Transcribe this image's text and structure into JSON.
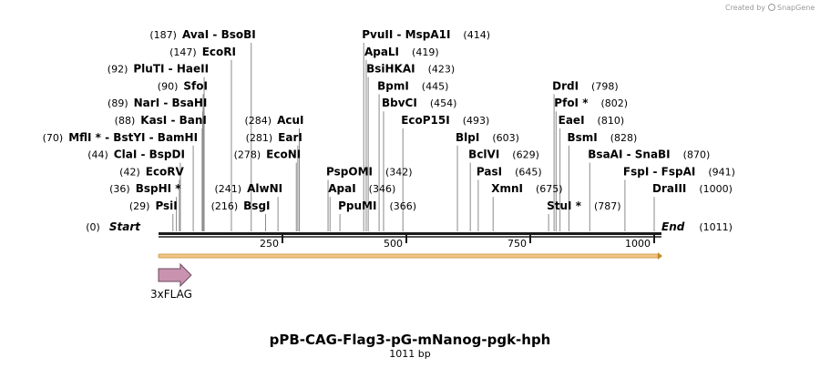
{
  "chart_data": {
    "type": "linear-map",
    "title": "pPB-CAG-Flag3-pG-mNanog-pgk-hph",
    "length_label": "1011 bp",
    "length": 1011,
    "ticks": [
      {
        "value": 250,
        "label": "250"
      },
      {
        "value": 500,
        "label": "500"
      },
      {
        "value": 750,
        "label": "750"
      },
      {
        "value": 1000,
        "label": "1000"
      }
    ],
    "features": [
      {
        "name": "3xFLAG",
        "start": 0,
        "end": 66,
        "color": "#c993b0",
        "direction": "forward"
      }
    ],
    "sites": [
      {
        "text": "AvaI  - BsoBI",
        "pos": "(187)",
        "x": 187,
        "side": "left",
        "row": 0
      },
      {
        "text": "EcoRI",
        "pos": "(147)",
        "x": 147,
        "side": "left",
        "row": 1
      },
      {
        "text": "PluTI  - HaeII",
        "pos": "(92)",
        "x": 92,
        "side": "left",
        "row": 2
      },
      {
        "text": "SfoI",
        "pos": "(90)",
        "x": 90,
        "side": "left",
        "row": 3
      },
      {
        "text": "NarI  - BsaHI",
        "pos": "(89)",
        "x": 89,
        "side": "left",
        "row": 4
      },
      {
        "text": "KasI  - BanI",
        "pos": "(88)",
        "x": 88,
        "side": "left",
        "row": 5
      },
      {
        "text": "MflI * - BstYI  - BamHI",
        "pos": "(70)",
        "x": 70,
        "side": "left",
        "row": 6
      },
      {
        "text": "ClaI  - BspDI",
        "pos": "(44)",
        "x": 44,
        "side": "left",
        "row": 7
      },
      {
        "text": "EcoRV",
        "pos": "(42)",
        "x": 42,
        "side": "left",
        "row": 8
      },
      {
        "text": "BspHI *",
        "pos": "(36)",
        "x": 36,
        "side": "left",
        "row": 9
      },
      {
        "text": "PsiI",
        "pos": "(29)",
        "x": 29,
        "side": "left",
        "row": 10
      },
      {
        "text": "AcuI",
        "pos": "(284)",
        "x": 284,
        "side": "left",
        "row": 5
      },
      {
        "text": "EarI",
        "pos": "(281)",
        "x": 281,
        "side": "left",
        "row": 6
      },
      {
        "text": "EcoNI",
        "pos": "(278)",
        "x": 278,
        "side": "left",
        "row": 7
      },
      {
        "text": "AlwNI",
        "pos": "(241)",
        "x": 241,
        "side": "left",
        "row": 9
      },
      {
        "text": "BsgI",
        "pos": "(216)",
        "x": 216,
        "side": "left",
        "row": 10
      },
      {
        "text": "PvuII  - MspA1I",
        "pos": "(414)",
        "x": 414,
        "side": "right",
        "row": 0
      },
      {
        "text": "ApaLI",
        "pos": "(419)",
        "x": 419,
        "side": "right",
        "row": 1
      },
      {
        "text": "BsiHKAI",
        "pos": "(423)",
        "x": 423,
        "side": "right",
        "row": 2
      },
      {
        "text": "BpmI",
        "pos": "(445)",
        "x": 445,
        "side": "right",
        "row": 3
      },
      {
        "text": "BbvCI",
        "pos": "(454)",
        "x": 454,
        "side": "right",
        "row": 4
      },
      {
        "text": "EcoP15I",
        "pos": "(493)",
        "x": 493,
        "side": "right",
        "row": 5
      },
      {
        "text": "PspOMI",
        "pos": "(342)",
        "x": 342,
        "side": "right",
        "row": 8
      },
      {
        "text": "ApaI",
        "pos": "(346)",
        "x": 346,
        "side": "right",
        "row": 9
      },
      {
        "text": "PpuMI",
        "pos": "(366)",
        "x": 366,
        "side": "right",
        "row": 10
      },
      {
        "text": "BlpI",
        "pos": "(603)",
        "x": 603,
        "side": "right",
        "row": 6
      },
      {
        "text": "BclVI",
        "pos": "(629)",
        "x": 629,
        "side": "right",
        "row": 7
      },
      {
        "text": "PasI",
        "pos": "(645)",
        "x": 645,
        "side": "right",
        "row": 8
      },
      {
        "text": "XmnI",
        "pos": "(675)",
        "x": 675,
        "side": "right",
        "row": 9
      },
      {
        "text": "DrdI",
        "pos": "(798)",
        "x": 798,
        "side": "right",
        "row": 3
      },
      {
        "text": "PfoI *",
        "pos": "(802)",
        "x": 802,
        "side": "right",
        "row": 4
      },
      {
        "text": "EaeI",
        "pos": "(810)",
        "x": 810,
        "side": "right",
        "row": 5
      },
      {
        "text": "BsmI",
        "pos": "(828)",
        "x": 828,
        "side": "right",
        "row": 6
      },
      {
        "text": "BsaAI  - SnaBI",
        "pos": "(870)",
        "x": 870,
        "side": "right",
        "row": 7
      },
      {
        "text": "FspI  - FspAI",
        "pos": "(941)",
        "x": 941,
        "side": "right",
        "row": 8
      },
      {
        "text": "DraIII",
        "pos": "(1000)",
        "x": 1000,
        "side": "right",
        "row": 9
      },
      {
        "text": "StuI *",
        "pos": "(787)",
        "x": 787,
        "side": "right",
        "row": 10
      }
    ],
    "ends": [
      {
        "text": "Start",
        "pos": "(0)",
        "x": 0,
        "side": "left"
      },
      {
        "text": "End",
        "pos": "(1011)",
        "x": 1011,
        "side": "right"
      }
    ]
  },
  "credit": {
    "text": "Created by",
    "brand": "SnapGene"
  }
}
